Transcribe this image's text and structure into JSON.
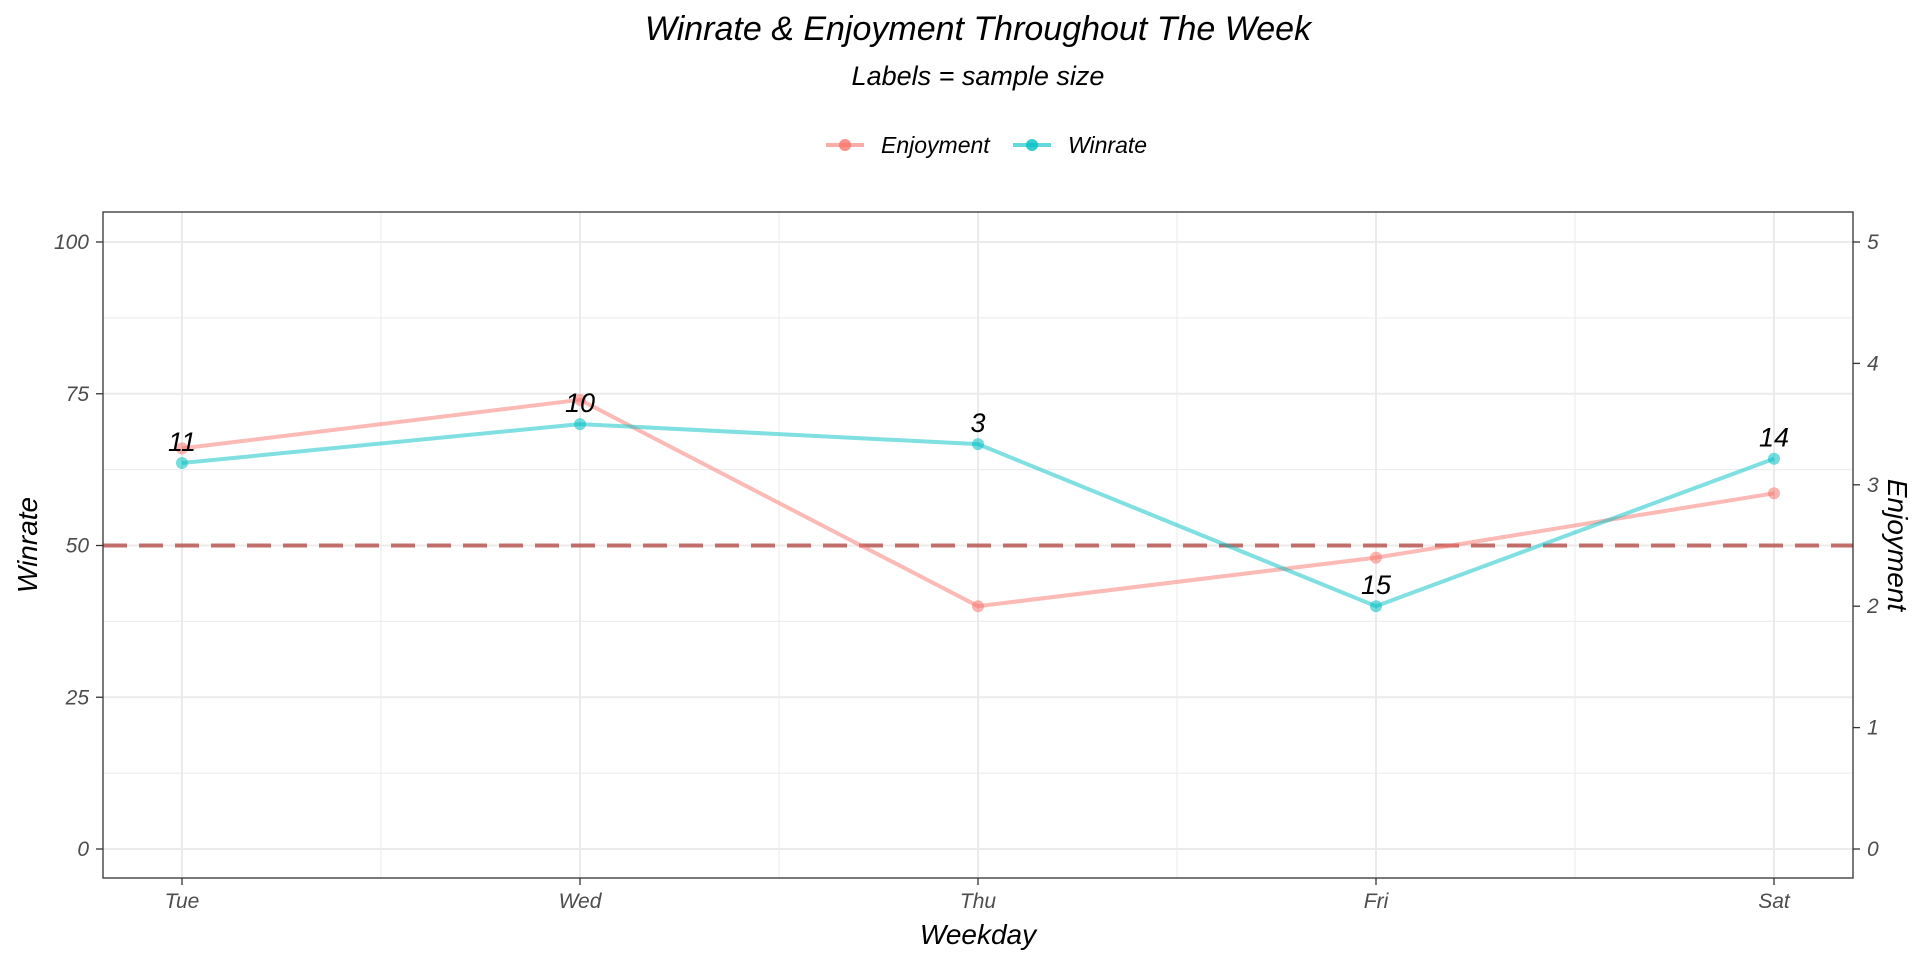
{
  "chart_data": {
    "type": "line",
    "title": "Winrate & Enjoyment Throughout The Week",
    "subtitle": "Labels = sample size",
    "xlabel": "Weekday",
    "ylabel": "Winrate",
    "y2label": "Enjoyment",
    "categories": [
      "Tue",
      "Wed",
      "Thu",
      "Fri",
      "Sat"
    ],
    "ylim": [
      0,
      100
    ],
    "y2lim": [
      0,
      5
    ],
    "yticks": [
      "0",
      "25",
      "50",
      "75",
      "100"
    ],
    "y2ticks": [
      "0",
      "1",
      "2",
      "3",
      "4",
      "5"
    ],
    "series": [
      {
        "name": "Enjoyment",
        "axis": "right",
        "color": "#F8766D",
        "values": [
          3.3,
          3.7,
          2.0,
          2.4,
          2.93
        ]
      },
      {
        "name": "Winrate",
        "axis": "left",
        "color": "#00BFC4",
        "values": [
          63.6,
          70.0,
          66.7,
          40.0,
          64.3
        ]
      }
    ],
    "sample_sizes": [
      "11",
      "10",
      "3",
      "15",
      "14"
    ],
    "reference_line": {
      "y": 50,
      "style": "dashed",
      "color": "#B2413C"
    },
    "legend_position": "top",
    "grid": true
  }
}
